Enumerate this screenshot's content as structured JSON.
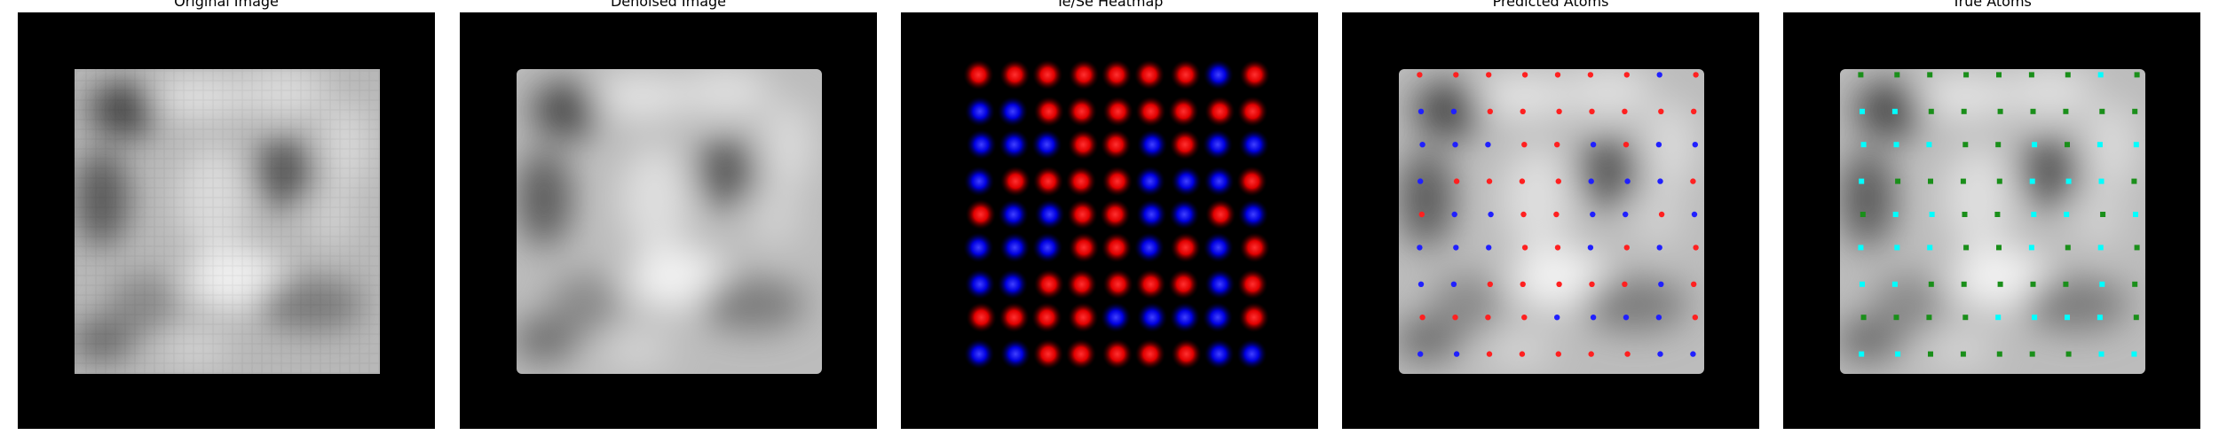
{
  "panels": [
    {
      "title": "Original Image"
    },
    {
      "title": "Denoised Image"
    },
    {
      "title": "Te/Se Heatmap"
    },
    {
      "title": "Predicted Atoms"
    },
    {
      "title": "True Atoms"
    }
  ],
  "colors": {
    "background": "#000000",
    "te": "#ff2020",
    "se": "#2020ff",
    "true_te": "#00ffff",
    "true_se": "#1a8f1a"
  },
  "atom_grid": {
    "rows": 9,
    "cols": 9,
    "species": [
      "RRRRRRRBR",
      "BBRRRRRRR",
      "BBBRRBRBB",
      "BRRRRBBBR",
      "RBBRRBBRB",
      "BBBRRBRBR",
      "BBRRRRRBR",
      "RRRRBBBBR",
      "BBRRRRRBB"
    ]
  }
}
